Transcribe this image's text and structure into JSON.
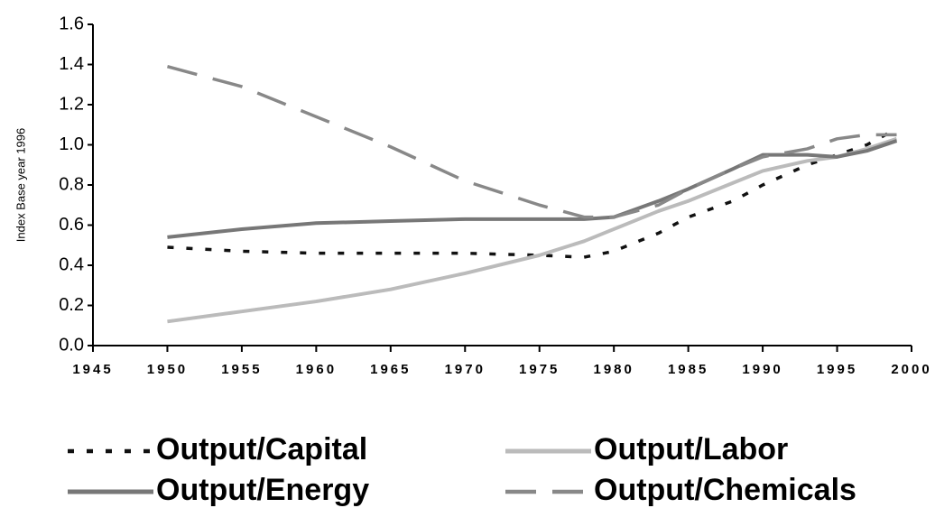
{
  "chart_data": {
    "type": "line",
    "y_label": "Index Base year 1996",
    "x": [
      1950,
      1955,
      1960,
      1965,
      1970,
      1975,
      1978,
      1980,
      1983,
      1985,
      1988,
      1990,
      1993,
      1995,
      1997,
      1999
    ],
    "series": [
      {
        "name": "Output/Capital",
        "color": "#111111",
        "style": "dotted",
        "values": [
          0.49,
          0.47,
          0.46,
          0.46,
          0.46,
          0.45,
          0.44,
          0.47,
          0.56,
          0.64,
          0.72,
          0.8,
          0.9,
          0.95,
          1.0,
          1.08
        ]
      },
      {
        "name": "Output/Labor",
        "color": "#bbbbbb",
        "style": "solid",
        "values": [
          0.12,
          0.17,
          0.22,
          0.28,
          0.36,
          0.45,
          0.52,
          0.58,
          0.67,
          0.72,
          0.81,
          0.87,
          0.92,
          0.94,
          0.98,
          1.03
        ]
      },
      {
        "name": "Output/Energy",
        "color": "#777777",
        "style": "solid",
        "values": [
          0.54,
          0.58,
          0.61,
          0.62,
          0.63,
          0.63,
          0.63,
          0.64,
          0.72,
          0.78,
          0.88,
          0.95,
          0.95,
          0.94,
          0.97,
          1.02
        ]
      },
      {
        "name": "Output/Chemicals",
        "color": "#888888",
        "style": "dashed",
        "values": [
          1.39,
          1.29,
          1.14,
          0.99,
          0.82,
          0.7,
          0.64,
          0.64,
          0.7,
          0.78,
          0.88,
          0.94,
          0.98,
          1.03,
          1.05,
          1.05
        ]
      }
    ],
    "xlim": [
      1945,
      2000
    ],
    "xticks": [
      1945,
      1950,
      1955,
      1960,
      1965,
      1970,
      1975,
      1980,
      1985,
      1990,
      1995,
      2000
    ],
    "ylim": [
      0,
      1.6
    ],
    "yticks": [
      {
        "value": 0,
        "label": "0.0"
      },
      0.2,
      0.4,
      0.6,
      0.8,
      {
        "value": 1,
        "label": "1.0"
      },
      1.2,
      1.4,
      1.6
    ],
    "grid": false
  }
}
